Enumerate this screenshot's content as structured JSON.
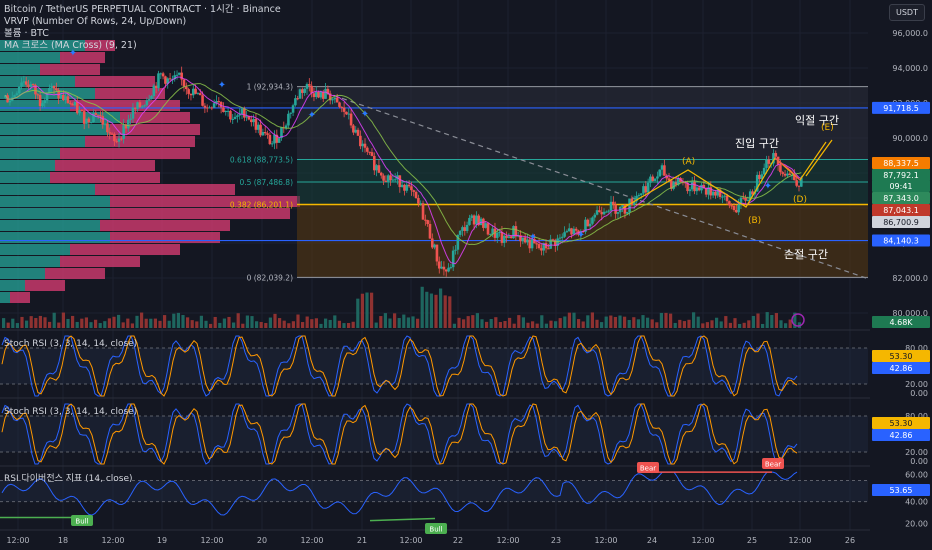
{
  "header": {
    "symbol_line": "Bitcoin / TetherUS PERPETUAL CONTRACT · 1시간 · Binance",
    "vrvp_line": "VRVP (Number Of Rows, 24, Up/Down)",
    "ticker_line": "볼륨 · BTC",
    "ma_line": "MA 크로스 (MA Cross) (9, 21)",
    "currency_button": "USDT"
  },
  "colors": {
    "background": "#141722",
    "up": "#26a69a",
    "down": "#ef5350",
    "blue_line": "#2962ff",
    "fib_yellow": "#f5b700",
    "stoch_k": "#2962ff",
    "stoch_d": "#ff9800",
    "rsi_line": "#2962ff"
  },
  "chart_data": [
    {
      "type": "candlestick",
      "title": "Bitcoin / TetherUS PERPETUAL CONTRACT · 1시간 · Binance",
      "x_ticks": [
        "12:00",
        "18",
        "12:00",
        "19",
        "12:00",
        "20",
        "12:00",
        "21",
        "12:00",
        "22",
        "12:00",
        "23",
        "12:00",
        "24",
        "12:00",
        "25",
        "12:00",
        "26"
      ],
      "y_ticks": [
        96000,
        94000,
        92000,
        90000,
        88000,
        86000,
        84000,
        82000,
        80000
      ],
      "y_tick_labels": [
        "96,000.0",
        "94,000.0",
        "92,000.0",
        "90,000.0",
        "88,000.0",
        "86,000.0",
        "84,000.0",
        "82,000.0",
        "80,000.0"
      ],
      "ylim": [
        79400,
        96900
      ],
      "close_path": [
        92300,
        93300,
        93000,
        92100,
        92900,
        92400,
        92100,
        91600,
        91000,
        91500,
        90700,
        89700,
        90500,
        91500,
        91900,
        92700,
        93600,
        93200,
        93400,
        92800,
        92400,
        91700,
        92300,
        91600,
        91000,
        91500,
        90900,
        90200,
        89700,
        90400,
        91600,
        92700,
        93000,
        92300,
        92600,
        91800,
        91400,
        90200,
        89200,
        88500,
        87900,
        87600,
        87500,
        86800,
        86000,
        84500,
        82700,
        82300,
        84300,
        85100,
        85500,
        84800,
        84500,
        84100,
        84700,
        84200,
        83900,
        83600,
        84000,
        84200,
        84700,
        84400,
        85300,
        85800,
        86100,
        86000,
        85900,
        86600,
        87100,
        87600,
        88100,
        87400,
        87600,
        87100,
        87300,
        86900,
        87000,
        86200,
        86000,
        86500,
        87200,
        88600,
        88900,
        88200,
        87800,
        87400
      ],
      "fib_levels": [
        {
          "label": "1 (92,934.3)",
          "value": 92934.3
        },
        {
          "label": "0.618 (88,773.5)",
          "value": 88773.5
        },
        {
          "label": "0.5 (87,486.8)",
          "value": 87486.8
        },
        {
          "label": "0.382 (86,201.1)",
          "value": 86201.1
        },
        {
          "label": "0 (82,039.2)",
          "value": 82039.2
        }
      ],
      "horizontal_lines": [
        {
          "value": 91718.5,
          "label": "91,718.5",
          "color": "#2962ff"
        },
        {
          "value": 84140.3,
          "label": "84,140.3",
          "color": "#2962ff"
        }
      ],
      "price_badges": [
        {
          "value": 88337.5,
          "label": "88,337.5",
          "color": "#f57c00"
        },
        {
          "value": 87792.1,
          "label": "87,792.1",
          "color": "#1e7a52"
        },
        {
          "label": "09:41",
          "color": "#1e7a52"
        },
        {
          "value": 87343.0,
          "label": "87,343.0",
          "color": "#2e8a5c"
        },
        {
          "value": 87043.1,
          "label": "87,043.1",
          "color": "#c0392b"
        },
        {
          "value": 86700.9,
          "label": "86,700.9",
          "color": "#d1d4dc"
        }
      ],
      "annotations": [
        "익절 구간",
        "진입 구간",
        "손절 구간",
        "(A)",
        "(B)",
        "(D)",
        "(E)"
      ],
      "volume_badge": "4.68K"
    },
    {
      "type": "line",
      "title": "Stoch RSI (3, 3, 14, 14, close)",
      "y_ticks": [
        80,
        20,
        0
      ],
      "y_tick_labels": [
        "80.00",
        "20.00",
        "0.00"
      ],
      "series": [
        {
          "name": "K",
          "value_label": "53.30"
        },
        {
          "name": "D",
          "value_label": "42.86"
        }
      ]
    },
    {
      "type": "line",
      "title": "Stoch RSI (3, 3, 14, 14, close)",
      "y_ticks": [
        80,
        20,
        0
      ],
      "y_tick_labels": [
        "80.00",
        "20.00",
        "0.00"
      ],
      "series": [
        {
          "name": "K",
          "value_label": "53.30"
        },
        {
          "name": "D",
          "value_label": "42.86"
        }
      ]
    },
    {
      "type": "line",
      "title": "RSI 다이버전스 지표 (14, close)",
      "y_ticks": [
        60,
        40,
        20
      ],
      "y_tick_labels": [
        "60.00",
        "40.00",
        "20.00"
      ],
      "last_value_label": "53.65",
      "divergence_labels": [
        "Bull",
        "Bull",
        "Bear",
        "Bear"
      ]
    }
  ]
}
